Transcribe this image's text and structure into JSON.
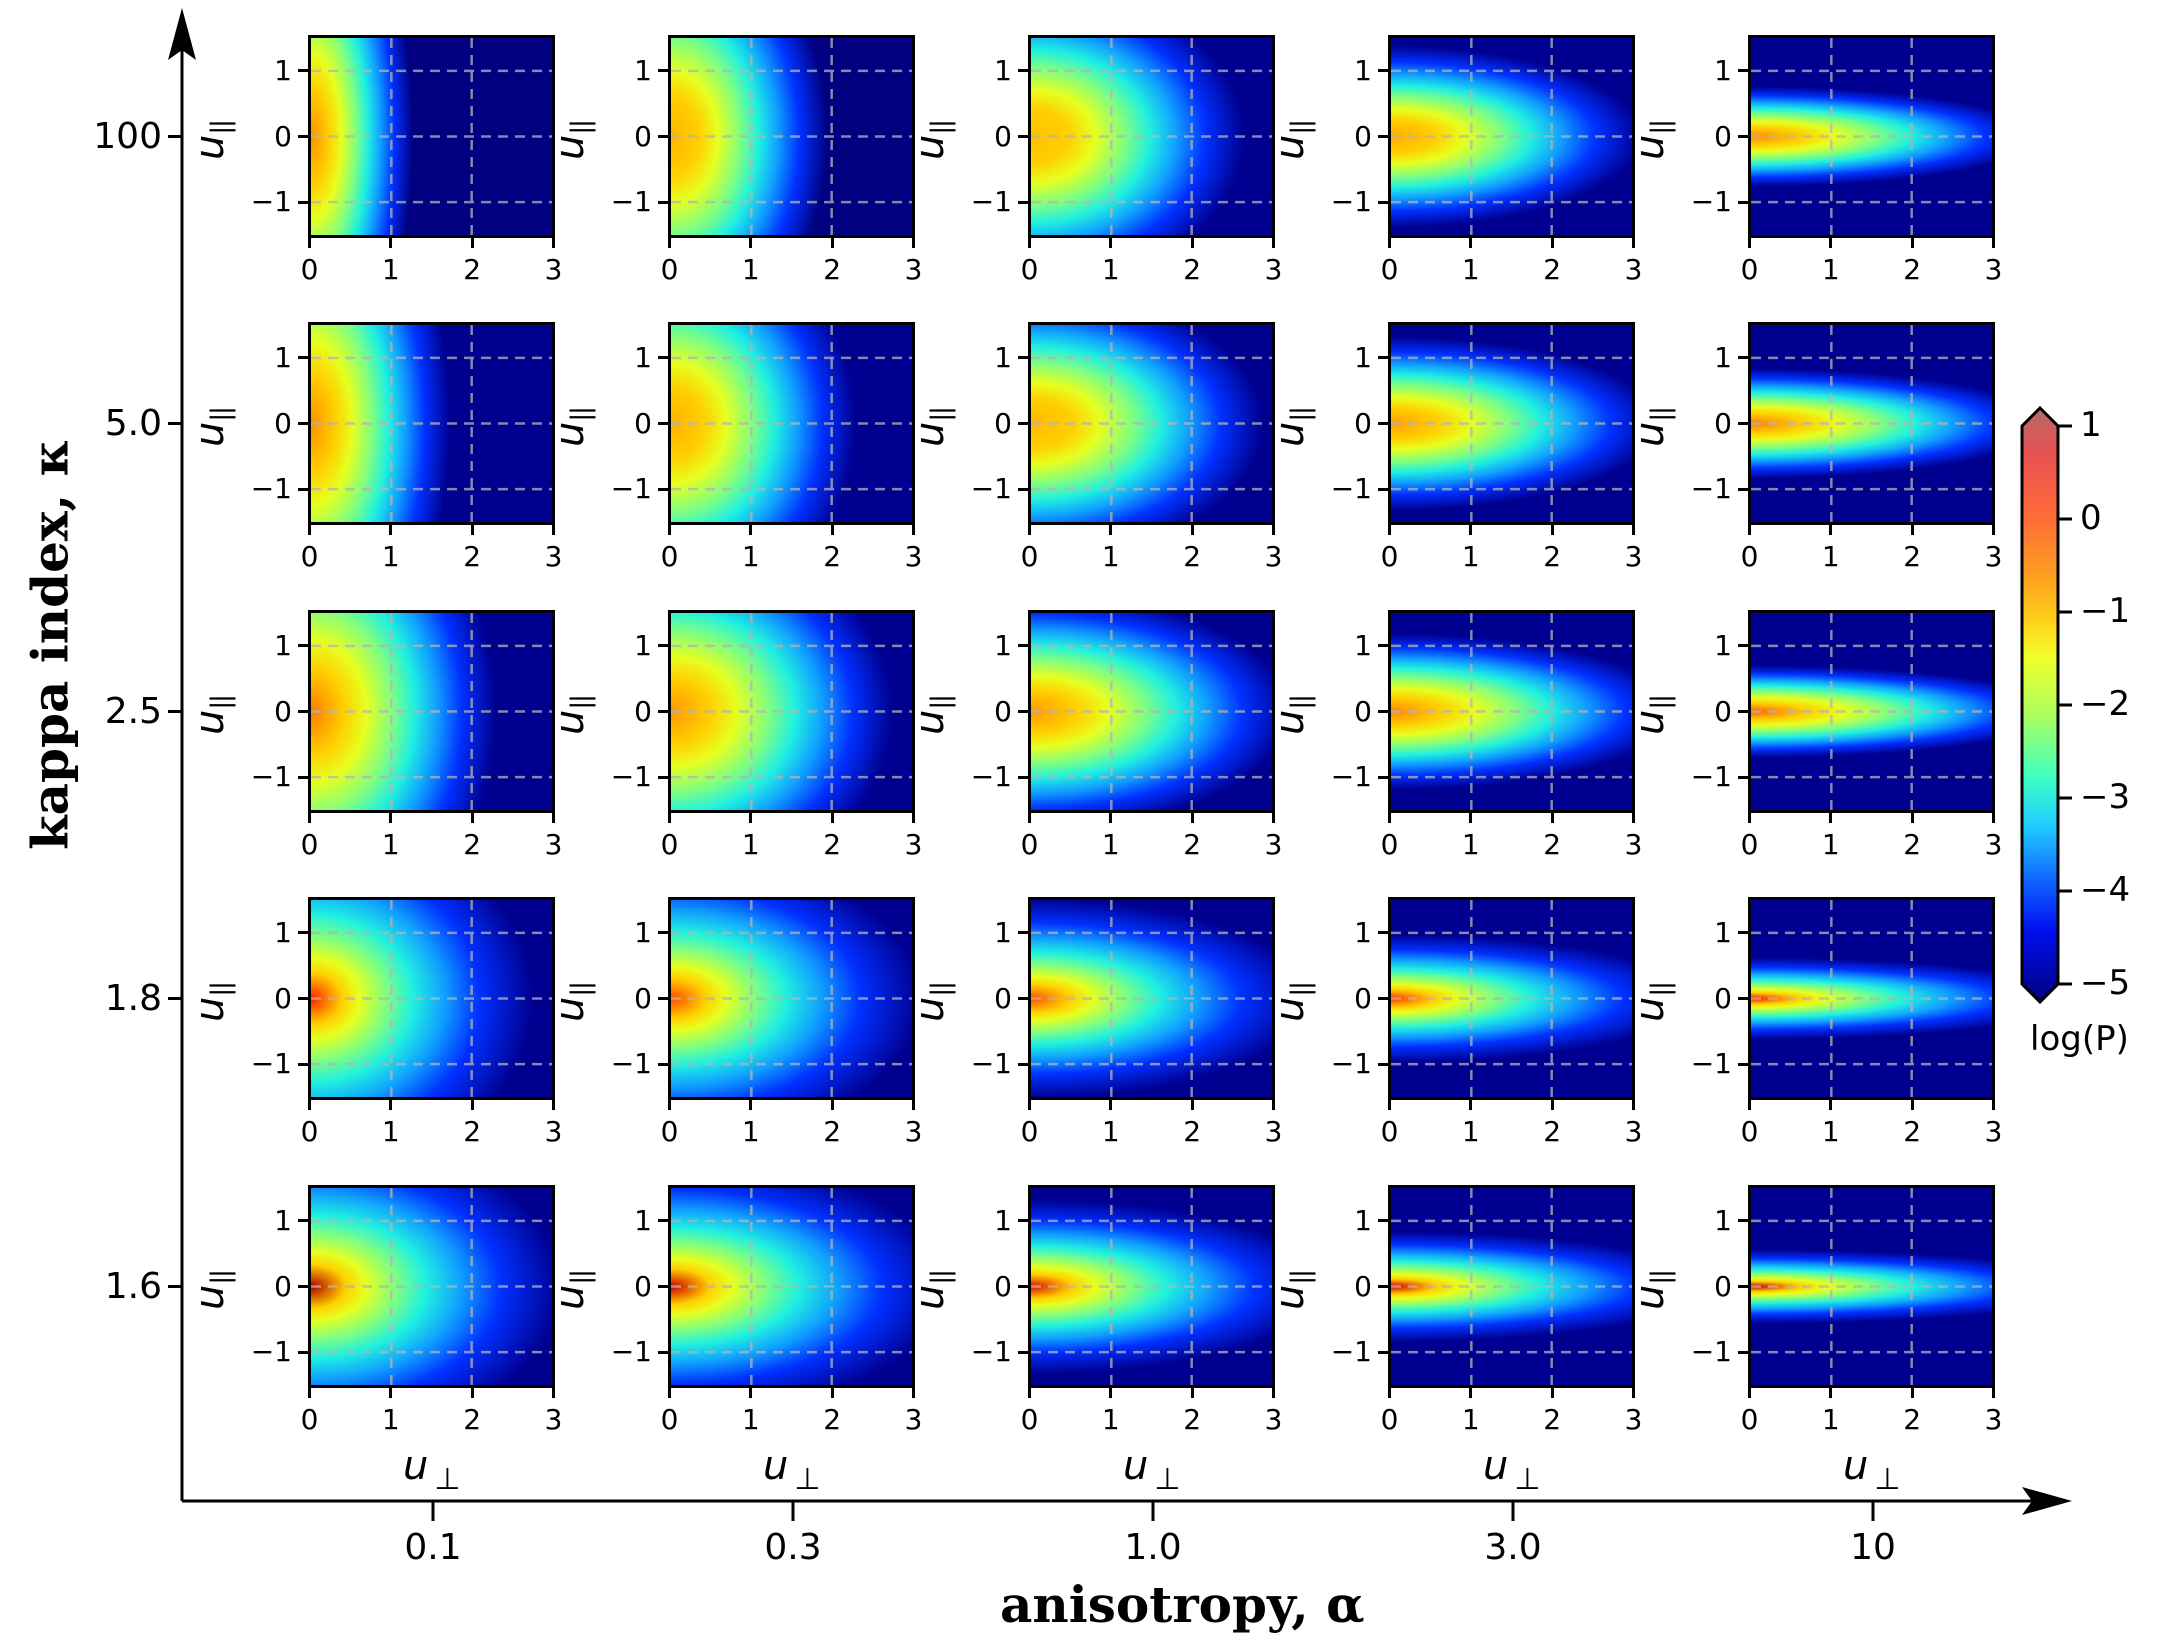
{
  "chart_data": {
    "type": "heatmap",
    "title": "",
    "layout": "5x5 grid of heatmaps: rows = kappa index, columns = anisotropy",
    "row_axis": {
      "label": "kappa index, κ",
      "values": [
        "100",
        "5.0",
        "2.5",
        "1.8",
        "1.6"
      ]
    },
    "col_axis": {
      "label": "anisotropy, α",
      "values": [
        "0.1",
        "0.3",
        "1.0",
        "3.0",
        "10"
      ]
    },
    "panel_xlabel": "u⊥",
    "panel_ylabel": "u||",
    "panel_xticks": [
      "0",
      "1",
      "2",
      "3"
    ],
    "panel_yticks": [
      "1",
      "0",
      "−1"
    ],
    "panel_xlim": [
      0,
      3
    ],
    "panel_ylim": [
      -1.5,
      1.5
    ],
    "grid": "dashed gray",
    "colorbar": {
      "label": "log(P)",
      "ticks": [
        "1",
        "0",
        "−1",
        "−2",
        "−3",
        "−4",
        "−5"
      ],
      "range": [
        -5,
        1
      ],
      "colormap": "jet",
      "extend": "both"
    },
    "panel_peak_logP_estimates": [
      {
        "kappa": "100",
        "values": [
          -0.6,
          -0.9,
          -1.0,
          -1.0,
          -0.6
        ]
      },
      {
        "kappa": "5.0",
        "values": [
          -0.5,
          -0.8,
          -0.9,
          -0.8,
          -0.5
        ]
      },
      {
        "kappa": "2.5",
        "values": [
          -0.3,
          -0.6,
          -0.6,
          -0.5,
          -0.2
        ]
      },
      {
        "kappa": "1.8",
        "values": [
          0.2,
          -0.1,
          -0.1,
          0.0,
          0.3
        ]
      },
      {
        "kappa": "1.6",
        "values": [
          0.7,
          0.5,
          0.4,
          0.5,
          0.6
        ]
      }
    ]
  },
  "axes": {
    "y_title": "kappa index, κ",
    "x_title": "anisotropy, α",
    "rows": [
      "100",
      "5.0",
      "2.5",
      "1.8",
      "1.6"
    ],
    "cols": [
      "0.1",
      "0.3",
      "1.0",
      "3.0",
      "10"
    ],
    "panel_xlabel_main": "u",
    "panel_xlabel_sub": "⊥",
    "panel_ylabel_main": "u",
    "panel_ylabel_sub": "||",
    "xticks": [
      "0",
      "1",
      "2",
      "3"
    ],
    "yticks": [
      "1",
      "0",
      "−1"
    ]
  },
  "colorbar": {
    "label": "log(P)",
    "ticks": [
      "1",
      "0",
      "−1",
      "−2",
      "−3",
      "−4",
      "−5"
    ]
  }
}
